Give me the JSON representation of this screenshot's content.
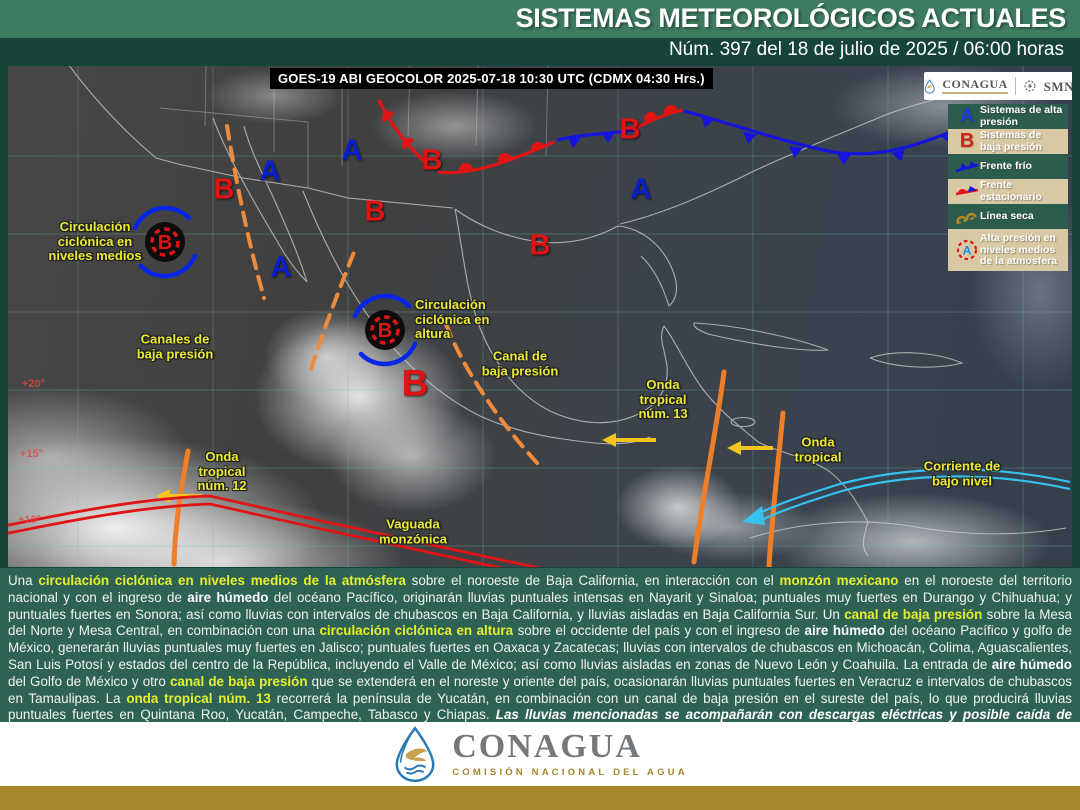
{
  "header": {
    "title": "SISTEMAS METEOROLÓGICOS ACTUALES",
    "subtitle": "Núm. 397 del 18 de julio de 2025 / 06:00 horas"
  },
  "map": {
    "satellite_label": "GOES-19 ABI GEOCOLOR 2025-07-18 10:30 UTC (CDMX 04:30 Hrs.)",
    "logos": {
      "conagua": "CONAGUA",
      "smn": "SMN"
    },
    "legend": [
      {
        "symbol": "A",
        "label": "Sistemas de alta presión"
      },
      {
        "symbol": "B",
        "label": "Sistemas de baja presión"
      },
      {
        "symbol": "cold-front",
        "label": "Frente frío"
      },
      {
        "symbol": "stationary-front",
        "label": "Frente estacionario"
      },
      {
        "symbol": "dry-line",
        "label": "Línea seca"
      },
      {
        "symbol": "mid-level-high",
        "label": "Alta presión en niveles medios de la atmosfera"
      }
    ],
    "letters": {
      "a": "A",
      "b": "B"
    },
    "annotations": {
      "circ_medios": "Circulación\nciclónica en\nniveles medios",
      "canales_baja": "Canales de\nbaja presión",
      "circ_altura": "Circulación\nciclónica en\naltura",
      "canal_baja": "Canal de\nbaja presión",
      "onda_13": "Onda\ntropical\nnúm. 13",
      "onda_tropical": "Onda\ntropical",
      "onda_12": "Onda\ntropical\nnúm. 12",
      "vaguada": "Vaguada\nmonzónica",
      "corriente": "Corriente de\nbajo  nivel"
    },
    "lat": {
      "p20": "+20°",
      "p15": "+15°",
      "p10": "+10°"
    }
  },
  "discussion": {
    "segments": [
      {
        "t": "Una ",
        "s": ""
      },
      {
        "t": "circulación ciclónica en niveles medios de la atmósfera",
        "s": "hl"
      },
      {
        "t": " sobre el noroeste de Baja California, en interacción con el ",
        "s": ""
      },
      {
        "t": "monzón mexicano",
        "s": "hl"
      },
      {
        "t": " en el noroeste del territorio nacional y con el ingreso de ",
        "s": ""
      },
      {
        "t": "aire húmedo",
        "s": "b"
      },
      {
        "t": " del océano Pacífico, originarán lluvias puntuales intensas en Nayarit y Sinaloa; puntuales muy fuertes en Durango y Chihuahua; y puntuales fuertes en Sonora; así como lluvias con intervalos de chubascos en Baja California, y lluvias aisladas en Baja California Sur. Un ",
        "s": ""
      },
      {
        "t": "canal de baja presión",
        "s": "hl"
      },
      {
        "t": " sobre la Mesa del Norte y Mesa Central, en combinación con una ",
        "s": ""
      },
      {
        "t": "circulación ciclónica en altura",
        "s": "hl"
      },
      {
        "t": " sobre el occidente del país y con el ingreso de ",
        "s": ""
      },
      {
        "t": "aire húmedo",
        "s": "b"
      },
      {
        "t": " del océano Pacífico y golfo de México, generarán lluvias puntuales muy fuertes en Jalisco; puntuales fuertes en Oaxaca y Zacatecas; lluvias con intervalos de chubascos en Michoacán, Colima, Aguascalientes, San Luis Potosí y estados del centro de la República, incluyendo el Valle de México; así como lluvias aisladas en zonas de Nuevo León y Coahuila. La entrada de ",
        "s": ""
      },
      {
        "t": "aire húmedo",
        "s": "b"
      },
      {
        "t": " del Golfo de México y otro ",
        "s": ""
      },
      {
        "t": "canal de baja presión",
        "s": "hl"
      },
      {
        "t": " que se extenderá en el noreste y oriente del país, ocasionarán lluvias puntuales fuertes en Veracruz e intervalos de chubascos en Tamaulipas. La ",
        "s": ""
      },
      {
        "t": "onda tropical núm. 13",
        "s": "hl"
      },
      {
        "t": " recorrerá la península de Yucatán, en combinación con un canal de baja presión en el sureste del país, lo que producirá lluvias puntuales fuertes en Quintana Roo, Yucatán, Campeche, Tabasco y Chiapas. ",
        "s": ""
      },
      {
        "t": "Las lluvias mencionadas se acompañarán con descargas eléctricas y posible caída de granizo.",
        "s": "bi"
      }
    ]
  },
  "footer": {
    "logo_text": "CONAGUA",
    "logo_subtext": "COMISIÓN NACIONAL DEL AGUA"
  },
  "colors": {
    "header_green": "#3e7c62",
    "dark_teal": "#17443a",
    "discussion_green": "#2d6254",
    "legend_tan": "#d8c8a4",
    "gold": "#a8862d",
    "annotation_yellow": "#e9ea33",
    "high_pressure_blue": "#0b1fd0",
    "low_pressure_red": "#e01212",
    "trough_orange": "#ee8b3c",
    "low_level_jet_cyan": "#35c3ee"
  }
}
